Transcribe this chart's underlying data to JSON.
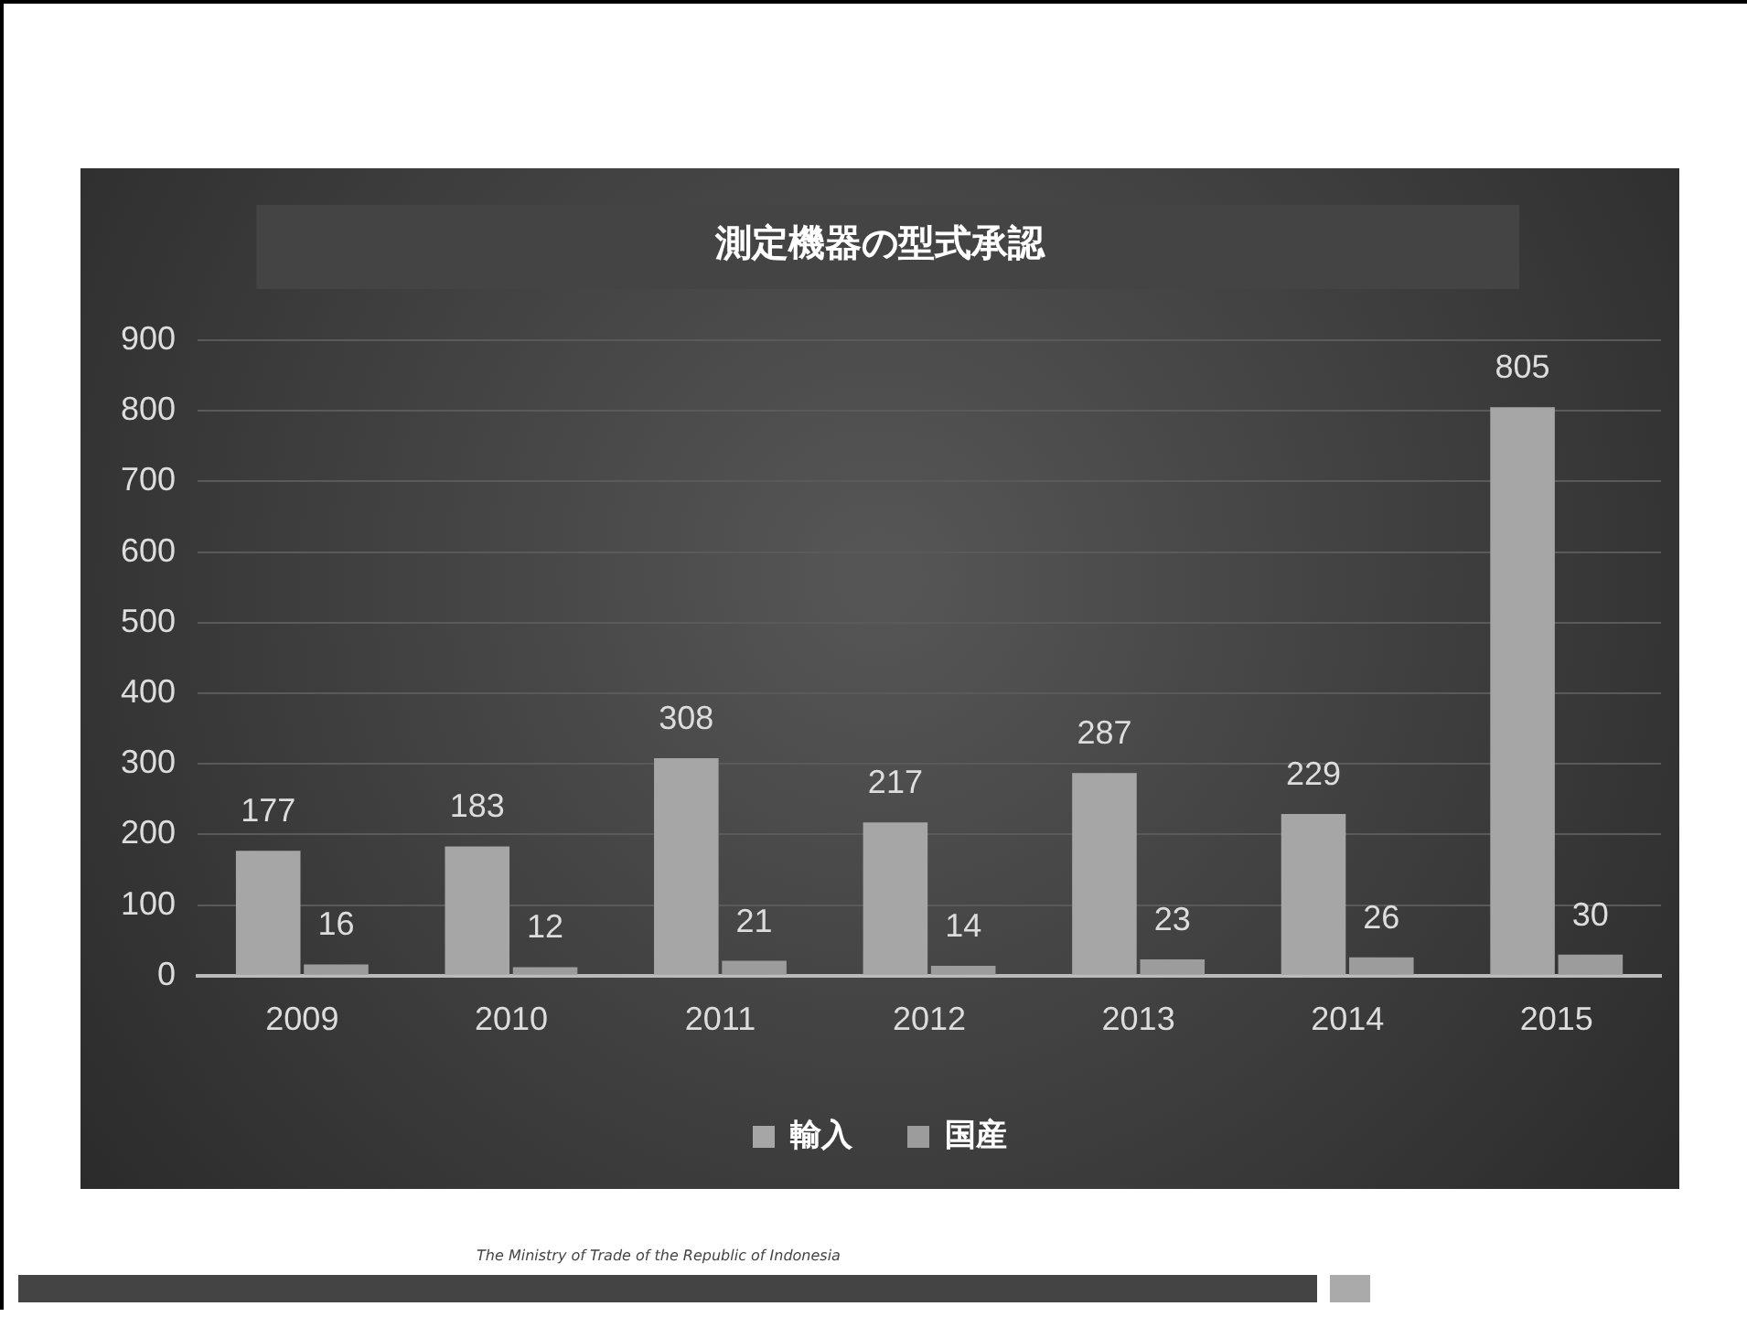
{
  "chart_data": {
    "type": "bar",
    "title": "測定機器の型式承認",
    "categories": [
      "2009",
      "2010",
      "2011",
      "2012",
      "2013",
      "2014",
      "2015"
    ],
    "series": [
      {
        "name": "輸入",
        "color": "#a6a6a6",
        "values": [
          177,
          183,
          308,
          217,
          287,
          229,
          805
        ]
      },
      {
        "name": "国産",
        "color": "#9c9c9c",
        "values": [
          16,
          12,
          21,
          14,
          23,
          26,
          30
        ]
      }
    ],
    "ylim": [
      0,
      900
    ],
    "yticks": [
      0,
      100,
      200,
      300,
      400,
      500,
      600,
      700,
      800,
      900
    ],
    "grid": "y",
    "legend": "bottom",
    "data_labels": true,
    "annotations": [
      "The Ministry of Trade of the Republic of Indonesia"
    ]
  }
}
